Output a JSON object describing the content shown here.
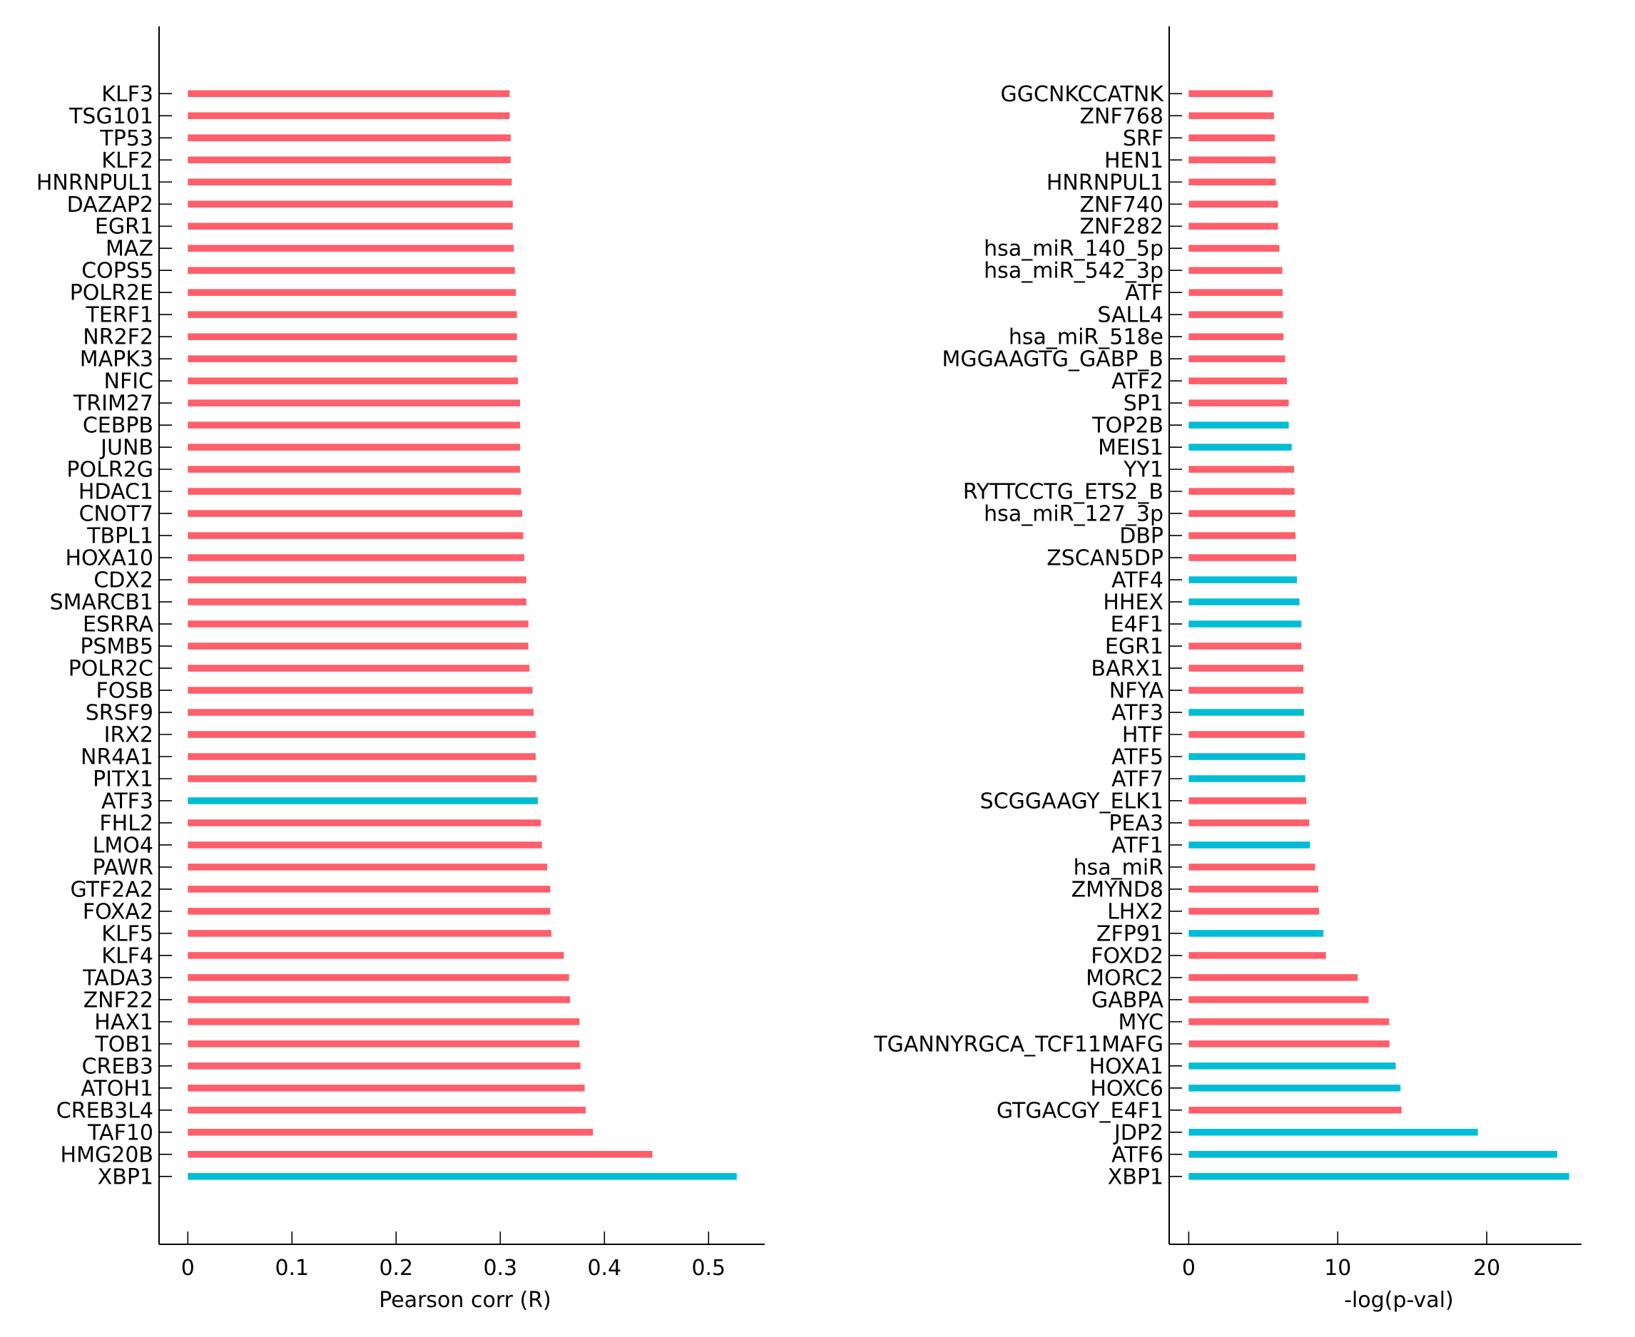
{
  "colors": {
    "positive": "#FF5E6A",
    "highlight": "#00BCD4",
    "axis": "#000000",
    "background": "#FFFFFF"
  },
  "chart_data": [
    {
      "type": "bar",
      "orientation": "horizontal",
      "title": "",
      "xlabel": "Pearson corr (R)",
      "ylabel": "",
      "xlim": [
        -0.025,
        0.555
      ],
      "xticks": [
        0,
        0.1,
        0.2,
        0.3,
        0.4,
        0.5
      ],
      "xtick_labels": [
        "0",
        "0.1",
        "0.2",
        "0.3",
        "0.4",
        "0.5"
      ],
      "grid": false,
      "legend": "none",
      "categories": [
        "KLF3",
        "TSG101",
        "TP53",
        "KLF2",
        "HNRNPUL1",
        "DAZAP2",
        "EGR1",
        "MAZ",
        "COPS5",
        "POLR2E",
        "TERF1",
        "NR2F2",
        "MAPK3",
        "NFIC",
        "TRIM27",
        "CEBPB",
        "JUNB",
        "POLR2G",
        "HDAC1",
        "CNOT7",
        "TBPL1",
        "HOXA10",
        "CDX2",
        "SMARCB1",
        "ESRRA",
        "PSMB5",
        "POLR2C",
        "FOSB",
        "SRSF9",
        "IRX2",
        "NR4A1",
        "PITX1",
        "ATF3",
        "FHL2",
        "LMO4",
        "PAWR",
        "GTF2A2",
        "FOXA2",
        "KLF5",
        "KLF4",
        "TADA3",
        "ZNF22",
        "HAX1",
        "TOB1",
        "CREB3",
        "ATOH1",
        "CREB3L4",
        "TAF10",
        "HMG20B",
        "XBP1"
      ],
      "values": [
        0.309,
        0.309,
        0.31,
        0.31,
        0.311,
        0.312,
        0.312,
        0.313,
        0.314,
        0.315,
        0.316,
        0.316,
        0.316,
        0.317,
        0.319,
        0.319,
        0.319,
        0.319,
        0.32,
        0.321,
        0.322,
        0.323,
        0.325,
        0.325,
        0.327,
        0.327,
        0.328,
        0.331,
        0.332,
        0.334,
        0.334,
        0.335,
        0.336,
        0.339,
        0.34,
        0.345,
        0.348,
        0.348,
        0.349,
        0.361,
        0.366,
        0.367,
        0.376,
        0.376,
        0.377,
        0.381,
        0.382,
        0.389,
        0.446,
        0.527
      ],
      "highlighted": [
        "ATF3",
        "XBP1"
      ]
    },
    {
      "type": "bar",
      "orientation": "horizontal",
      "title": "",
      "xlabel": "-log(p-val)",
      "ylabel": "",
      "xlim": [
        -1.3,
        26.8
      ],
      "xticks": [
        0,
        10,
        20
      ],
      "xtick_labels": [
        "0",
        "10",
        "20"
      ],
      "grid": false,
      "legend": "none",
      "categories": [
        "GGCNKCCATNK",
        "ZNF768",
        "SRF",
        "HEN1",
        "HNRNPUL1",
        "ZNF740",
        "ZNF282",
        "hsa_miR_140_5p",
        "hsa_miR_542_3p",
        "ATF",
        "SALL4",
        "hsa_miR_518e",
        "MGGAAGTG_GABP_B",
        "ATF2",
        "SP1",
        "TOP2B",
        "MEIS1",
        "YY1",
        "RYTTCCTG_ETS2_B",
        "hsa_miR_127_3p",
        "DBP",
        "ZSCAN5DP",
        "ATF4",
        "HHEX",
        "E4F1",
        "EGR1",
        "BARX1",
        "NFYA",
        "ATF3",
        "HTF",
        "ATF5",
        "ATF7",
        "SCGGAAGY_ELK1",
        "PEA3",
        "ATF1",
        "hsa_miR",
        "ZMYND8",
        "LHX2",
        "ZFP91",
        "FOXD2",
        "MORC2",
        "GABPA",
        "MYC",
        "TGANNYRGCA_TCF11MAFG",
        "HOXA1",
        "HOXC6",
        "GTGACGY_E4F1",
        "JDP2",
        "ATF6",
        "XBP1"
      ],
      "values": [
        5.64,
        5.72,
        5.77,
        5.82,
        5.84,
        5.99,
        5.99,
        6.08,
        6.28,
        6.3,
        6.32,
        6.35,
        6.47,
        6.59,
        6.71,
        6.71,
        6.91,
        7.07,
        7.1,
        7.14,
        7.16,
        7.21,
        7.26,
        7.43,
        7.56,
        7.56,
        7.7,
        7.7,
        7.73,
        7.77,
        7.82,
        7.82,
        7.89,
        8.09,
        8.14,
        8.48,
        8.7,
        8.75,
        9.04,
        9.21,
        11.34,
        12.07,
        13.45,
        13.47,
        13.89,
        14.21,
        14.28,
        19.4,
        24.73,
        25.53
      ],
      "highlighted": [
        "TOP2B",
        "MEIS1",
        "ATF4",
        "HHEX",
        "E4F1",
        "ATF3",
        "ATF5",
        "ATF7",
        "ATF1",
        "ZFP91",
        "HOXA1",
        "HOXC6",
        "JDP2",
        "ATF6",
        "XBP1"
      ]
    }
  ]
}
